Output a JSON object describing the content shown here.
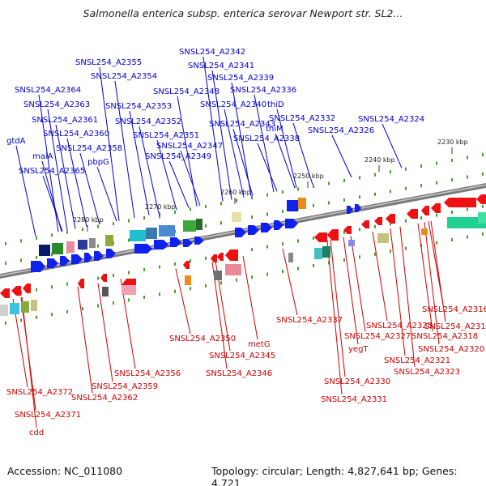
{
  "title": "Salmonella enterica subsp. enterica serovar Newport str. SL2...",
  "footer": {
    "accession": "Accession: NC_011080",
    "topology": "Topology: circular; Length: 4,827,641 bp; Genes: 4,721"
  },
  "colors": {
    "forward_label": "#0000cc",
    "reverse_label": "#cc0000",
    "backbone": "#777777"
  },
  "ticks": [
    "2230 kbp",
    "2240 kbp",
    "2250 kbp",
    "2260 kbp",
    "2270 kbp",
    "2280 kbp"
  ],
  "forward_labels": [
    "SNSL254_A2342",
    "SNSL254_A2355",
    "SNSL254_A2341",
    "SNSL254_A2354",
    "SNSL254_A2339",
    "SNSL254_A2364",
    "SNSL254_A2348",
    "SNSL254_A2336",
    "SNSL254_A2363",
    "SNSL254_A2353",
    "SNSL254_A2340",
    "thiD",
    "SNSL254_A2361",
    "SNSL254_A2352",
    "SNSL254_A2343",
    "SNSL254_A2332",
    "SNSL254_A2324",
    "SNSL254_A2360",
    "SNSL254_A2351",
    "thiM",
    "SNSL254_A2326",
    "gtdA",
    "SNSL254_A2358",
    "SNSL254_A2347",
    "SNSL254_A2338",
    "maiA",
    "SNSL254_A2349",
    "pbpG",
    "SNSL254_A2365"
  ],
  "reverse_labels": [
    "SNSL254_A2316",
    "SNSL254_A2337",
    "SNSL254_A2325",
    "SNSL254_A2317",
    "SNSL254_A2327",
    "SNSL254_A2318",
    "SNSL254_A2350",
    "metG",
    "yegT",
    "SNSL254_A2320",
    "SNSL254_A2345",
    "SNSL254_A2321",
    "SNSL254_A2356",
    "SNSL254_A2346",
    "SNSL254_A2323",
    "SNSL254_A2330",
    "SNSL254_A2359",
    "SNSL254_A2372",
    "SNSL254_A2362",
    "SNSL254_A2331",
    "SNSL254_A2371",
    "cdd"
  ]
}
